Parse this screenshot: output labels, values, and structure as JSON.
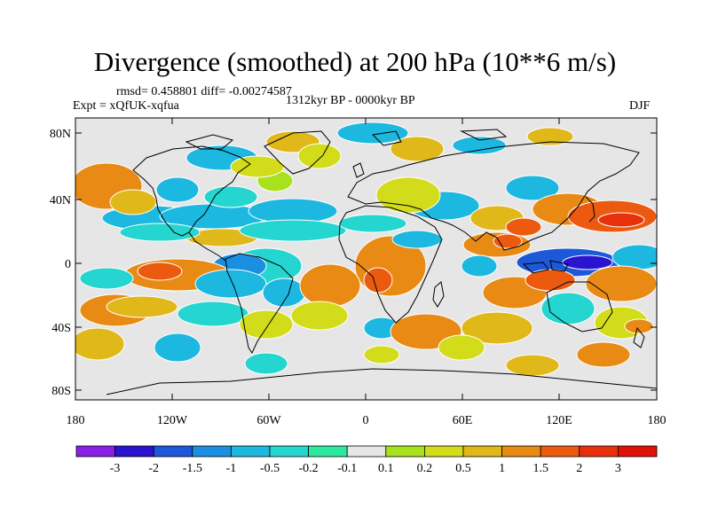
{
  "title": "Divergence (smoothed) at 200 hPa (10**6 m/s)",
  "stats": "rmsd= 0.458801 diff= -0.00274587",
  "experiment": "Expt = xQfUK-xqfua",
  "period": "1312kyr BP - 0000kyr BP",
  "season": "DJF",
  "lat_labels": [
    "80N",
    "40N",
    "0",
    "40S",
    "80S"
  ],
  "lon_labels": [
    "180",
    "120W",
    "60W",
    "0",
    "60E",
    "120E",
    "180"
  ],
  "colorbar": {
    "labels": [
      "-3",
      "-2",
      "-1.5",
      "-1",
      "-0.5",
      "-0.2",
      "-0.1",
      "0.1",
      "0.2",
      "0.5",
      "1",
      "1.5",
      "2",
      "3"
    ],
    "colors": [
      "#8a1fe6",
      "#2a14cf",
      "#1c58d8",
      "#1a8ee0",
      "#1db8e0",
      "#25d5cf",
      "#2ee8a0",
      "#e6e6e6",
      "#a8e21c",
      "#d2dc1a",
      "#e0b81a",
      "#e88a14",
      "#ec5a10",
      "#e8300c",
      "#e01208"
    ]
  },
  "colors": {
    "background": "#e6e6e6",
    "coast": "#000000",
    "contour": "#ffffff"
  }
}
